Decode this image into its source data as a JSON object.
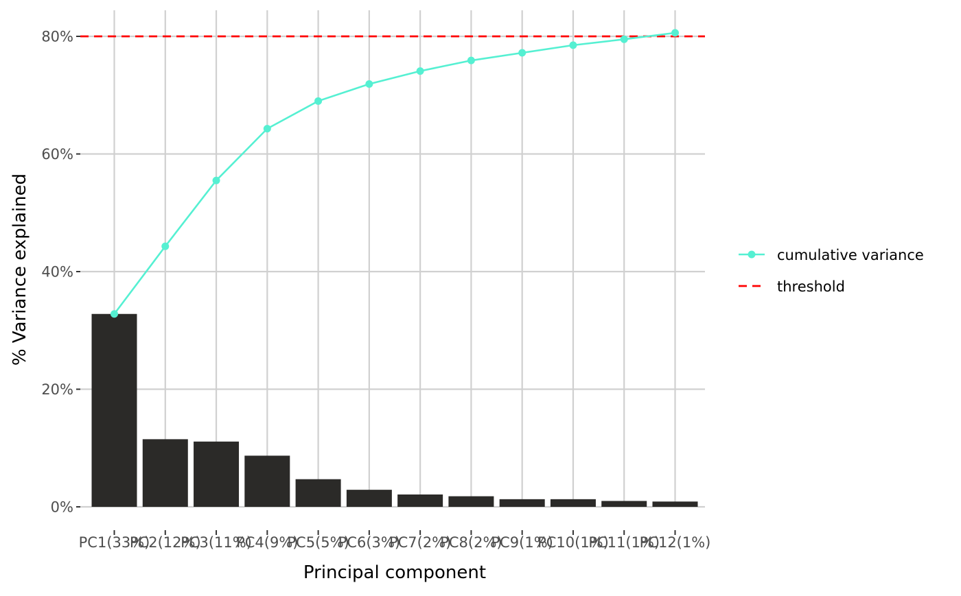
{
  "chart_data": {
    "type": "bar",
    "xlabel": "Principal component",
    "ylabel": "% Variance explained",
    "categories": [
      "PC1(33%)",
      "PC2(12%)",
      "PC3(11%)",
      "PC4(9%)",
      "PC5(5%)",
      "PC6(3%)",
      "PC7(2%)",
      "PC8(2%)",
      "PC9(1%)",
      "PC10(1%)",
      "PC11(1%)",
      "PC12(1%)"
    ],
    "ylim": [
      0,
      0.84
    ],
    "yticks": [
      0,
      0.2,
      0.4,
      0.6,
      0.8
    ],
    "ytick_labels": [
      "0%",
      "20%",
      "40%",
      "60%",
      "80%"
    ],
    "bars": {
      "values": [
        0.328,
        0.115,
        0.111,
        0.087,
        0.047,
        0.029,
        0.021,
        0.018,
        0.013,
        0.013,
        0.01,
        0.009
      ],
      "color": "#2b2a28"
    },
    "series": [
      {
        "name": "cumulative variance",
        "type": "line",
        "marker": "point",
        "color": "#55f0d2",
        "values": [
          0.328,
          0.443,
          0.555,
          0.643,
          0.69,
          0.719,
          0.741,
          0.759,
          0.772,
          0.785,
          0.795,
          0.806
        ]
      },
      {
        "name": "threshold",
        "type": "hline",
        "linestyle": "dashed",
        "color": "#ff0000",
        "value": 0.8
      }
    ],
    "grid": true,
    "legend": {
      "position": "right"
    }
  }
}
